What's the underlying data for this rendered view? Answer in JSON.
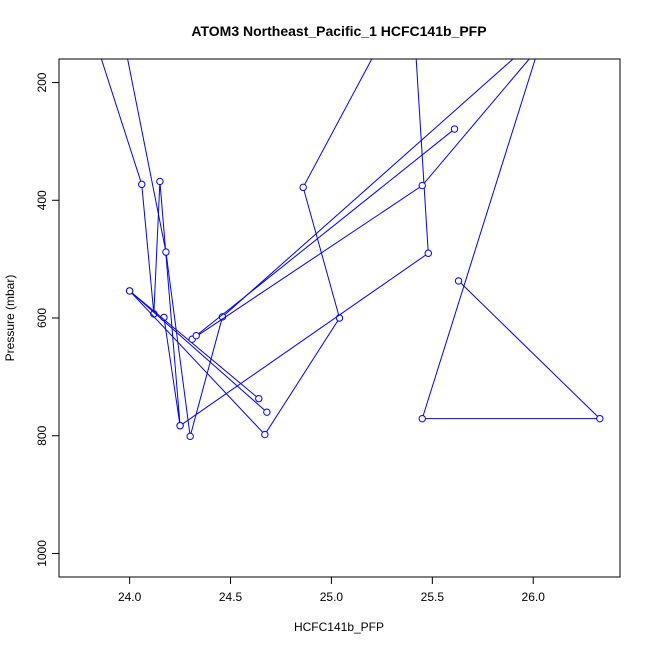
{
  "chart_data": {
    "type": "line",
    "title": "ATOM3 Northeast_Pacific_1 HCFC141b_PFP",
    "xlabel": "HCFC141b_PFP",
    "ylabel": "Pressure (mbar)",
    "xlim": [
      23.65,
      26.43
    ],
    "ylim": [
      1040,
      160
    ],
    "y_reversed": true,
    "grid": false,
    "legend": "none",
    "x_ticks": [
      {
        "value": 24.0,
        "label": "24.0"
      },
      {
        "value": 24.5,
        "label": "24.5"
      },
      {
        "value": 25.0,
        "label": "25.0"
      },
      {
        "value": 25.5,
        "label": "25.5"
      },
      {
        "value": 26.0,
        "label": "26.0"
      }
    ],
    "y_ticks": [
      {
        "value": 200,
        "label": "200"
      },
      {
        "value": 400,
        "label": "400"
      },
      {
        "value": 600,
        "label": "600"
      },
      {
        "value": 800,
        "label": "800"
      },
      {
        "value": 1000,
        "label": "1000"
      }
    ],
    "series_color": "#0000ff",
    "series": [
      {
        "points": [
          {
            "x": 23.86,
            "y": 160
          },
          {
            "x": 24.06,
            "y": 373
          },
          {
            "x": 24.12,
            "y": 593
          },
          {
            "x": 24.15,
            "y": 368
          },
          {
            "x": 24.25,
            "y": 783
          },
          {
            "x": 24.17,
            "y": 599
          }
        ]
      },
      {
        "points": [
          {
            "x": 23.99,
            "y": 160
          },
          {
            "x": 24.18,
            "y": 488
          },
          {
            "x": 24.3,
            "y": 801
          },
          {
            "x": 24.46,
            "y": 598
          },
          {
            "x": 25.9,
            "y": 160
          }
        ]
      },
      {
        "points": [
          {
            "x": 25.2,
            "y": 160
          },
          {
            "x": 24.86,
            "y": 378
          },
          {
            "x": 25.04,
            "y": 600
          },
          {
            "x": 24.67,
            "y": 798
          },
          {
            "x": 24.0,
            "y": 554
          },
          {
            "x": 24.64,
            "y": 737
          }
        ]
      },
      {
        "points": [
          {
            "x": 25.42,
            "y": 160
          },
          {
            "x": 25.48,
            "y": 490
          },
          {
            "x": 24.25,
            "y": 783
          }
        ]
      },
      {
        "points": [
          {
            "x": 24.68,
            "y": 760
          },
          {
            "x": 24.0,
            "y": 554
          }
        ]
      },
      {
        "points": [
          {
            "x": 24.31,
            "y": 636
          },
          {
            "x": 25.45,
            "y": 375
          },
          {
            "x": 25.98,
            "y": 160
          }
        ]
      },
      {
        "points": [
          {
            "x": 24.33,
            "y": 630
          },
          {
            "x": 25.61,
            "y": 279
          }
        ]
      },
      {
        "points": [
          {
            "x": 26.01,
            "y": 160
          },
          {
            "x": 25.45,
            "y": 771
          },
          {
            "x": 26.33,
            "y": 771
          },
          {
            "x": 25.63,
            "y": 537
          }
        ]
      }
    ]
  }
}
